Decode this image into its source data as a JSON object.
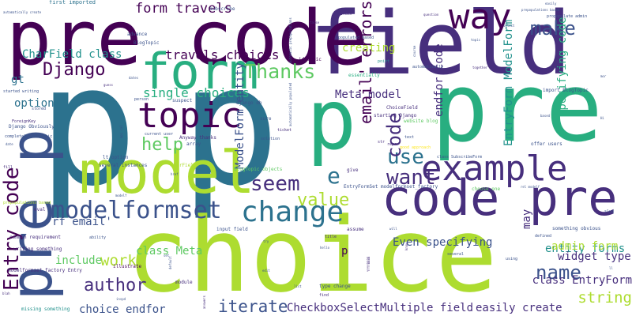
{
  "palette": {
    "background": "#ffffff",
    "colors": [
      "#440154",
      "#472f7d",
      "#3b528b",
      "#2c728e",
      "#21918c",
      "#28ae80",
      "#5ec962",
      "#addc30",
      "#fde725"
    ]
  },
  "words": [
    {
      "text": "p",
      "color": "#2c728e"
    },
    {
      "text": "p",
      "color": "#2c728e"
    },
    {
      "text": "choice",
      "color": "#addc30"
    },
    {
      "text": "field",
      "color": "#472f7d"
    },
    {
      "text": "pre code",
      "color": "#440154"
    },
    {
      "text": "pre",
      "color": "#28ae80"
    },
    {
      "text": "p",
      "color": "#28ae80"
    },
    {
      "text": "model",
      "color": "#addc30"
    },
    {
      "text": "code pre",
      "color": "#472f7d"
    },
    {
      "text": "form",
      "color": "#28ae80"
    },
    {
      "text": "pre p",
      "color": "#3b528b"
    },
    {
      "text": "example",
      "color": "#472f7d"
    },
    {
      "text": "topic",
      "color": "#440154"
    },
    {
      "text": "change",
      "color": "#2c728e"
    },
    {
      "text": "Entry code",
      "color": "#440154"
    },
    {
      "text": "modelformset",
      "color": "#3b528b"
    },
    {
      "text": "way",
      "color": "#440154"
    },
    {
      "text": "make",
      "color": "#3b528b"
    },
    {
      "text": "email' errors",
      "color": "#440154"
    },
    {
      "text": "form travels",
      "color": "#440154"
    },
    {
      "text": "Thanks",
      "color": "#5ec962"
    },
    {
      "text": "Django",
      "color": "#440154"
    },
    {
      "text": "seem",
      "color": "#472f7d"
    },
    {
      "text": "value",
      "color": "#addc30"
    },
    {
      "text": "want",
      "color": "#472f7d"
    },
    {
      "text": "use",
      "color": "#2c728e"
    },
    {
      "text": "code",
      "color": "#472f7d"
    },
    {
      "text": "e",
      "color": "#2c728e"
    },
    {
      "text": "name",
      "color": "#3b528b"
    },
    {
      "text": "author",
      "color": "#472f7d"
    },
    {
      "text": "help",
      "color": "#5ec962"
    },
    {
      "text": "iterate",
      "color": "#3b528b"
    },
    {
      "text": "string",
      "color": "#addc30"
    },
    {
      "text": "work",
      "color": "#addc30"
    },
    {
      "text": "single choices",
      "color": "#28ae80"
    },
    {
      "text": "travels choices",
      "color": "#440154"
    },
    {
      "text": "CharField class",
      "color": "#21918c"
    },
    {
      "text": "Meta model",
      "color": "#472f7d"
    },
    {
      "text": "creating",
      "color": "#addc30"
    },
    {
      "text": "endfor code",
      "color": "#472f7d"
    },
    {
      "text": "specifying code",
      "color": "#28ae80"
    },
    {
      "text": "EntryForm ModelForm",
      "color": "#21918c"
    },
    {
      "text": "ModelForm entity",
      "color": "#3b528b"
    },
    {
      "text": "Even specifying",
      "color": "#3b528b"
    },
    {
      "text": "entity forms",
      "color": "#21918c"
    },
    {
      "text": "admin form",
      "color": "#addc30"
    },
    {
      "text": "widget type",
      "color": "#472f7d"
    },
    {
      "text": "class EntryForm",
      "color": "#472f7d"
    },
    {
      "text": "easily create",
      "color": "#472f7d"
    },
    {
      "text": "CheckboxSelectMultiple field",
      "color": "#472f7d"
    },
    {
      "text": "choice endfor",
      "color": "#3b528b"
    },
    {
      "text": "class Meta",
      "color": "#5ec962"
    },
    {
      "text": "rf email'",
      "color": "#3b528b"
    },
    {
      "text": "include",
      "color": "#5ec962"
    },
    {
      "text": "option",
      "color": "#2c728e"
    },
    {
      "text": "gt",
      "color": "#2c728e"
    },
    {
      "text": "may",
      "color": "#472f7d"
    },
    {
      "text": "p",
      "color": "#440154"
    },
    {
      "text": "first imported",
      "color": "#2c728e"
    },
    {
      "text": "subscribe",
      "color": "#3b528b"
    },
    {
      "text": "advance",
      "color": "#3b528b"
    },
    {
      "text": "BlogTopic",
      "color": "#3b528b"
    },
    {
      "text": "id topic",
      "color": "#440154"
    },
    {
      "text": "populated based",
      "color": "#3b528b"
    },
    {
      "text": "essentially",
      "color": "#28ae80"
    },
    {
      "text": "ChoiceField",
      "color": "#472f7d"
    },
    {
      "text": "starting Django",
      "color": "#472f7d"
    },
    {
      "text": "website blog",
      "color": "#5ec962"
    },
    {
      "text": "repr",
      "color": "#472f7d"
    },
    {
      "text": "good approach",
      "color": "#fde725"
    },
    {
      "text": "class SubscribeForm",
      "color": "#3b528b"
    },
    {
      "text": "choose one",
      "color": "#5ec962"
    },
    {
      "text": "offer users",
      "color": "#3b528b"
    },
    {
      "text": "EntryFormSet modelformset_factory",
      "color": "#3b528b"
    },
    {
      "text": "BlogTopic objects",
      "color": "#5ec962"
    },
    {
      "text": "several instances",
      "color": "#3b528b"
    },
    {
      "text": "lt option",
      "color": "#3b528b"
    },
    {
      "text": "CharField",
      "color": "#addc30"
    },
    {
      "text": "django db",
      "color": "#3b528b"
    },
    {
      "text": "current user",
      "color": "#3b528b"
    },
    {
      "text": "Anyway thanks",
      "color": "#472f7d"
    },
    {
      "text": "array",
      "color": "#3b528b"
    },
    {
      "text": "import BlogTopic",
      "color": "#3b528b"
    },
    {
      "text": "modelformset_factory Entry",
      "color": "#472f7d"
    },
    {
      "text": "common requirement",
      "color": "#472f7d"
    },
    {
      "text": "writing something",
      "color": "#472f7d"
    },
    {
      "text": "Django Obviously",
      "color": "#3b528b"
    },
    {
      "text": "completely automatic",
      "color": "#3b528b"
    },
    {
      "text": "input field",
      "color": "#3b528b"
    },
    {
      "text": "missing something",
      "color": "#21918c"
    },
    {
      "text": "type change",
      "color": "#3b528b"
    },
    {
      "text": "assume",
      "color": "#472f7d"
    },
    {
      "text": "something obvious",
      "color": "#3b528b"
    },
    {
      "text": "defined",
      "color": "#3b528b"
    },
    {
      "text": "illustrate",
      "color": "#440154"
    },
    {
      "text": "module",
      "color": "#472f7d"
    },
    {
      "text": "solution",
      "color": "#3b528b"
    },
    {
      "text": "ticket",
      "color": "#472f7d"
    },
    {
      "text": "sure",
      "color": "#3b528b"
    },
    {
      "text": "suspect",
      "color": "#3b528b"
    },
    {
      "text": "person",
      "color": "#3b528b"
    },
    {
      "text": "eval",
      "color": "#472f7d"
    },
    {
      "text": "ability",
      "color": "#3b528b"
    },
    {
      "text": "slug",
      "color": "#3b528b"
    },
    {
      "text": "give",
      "color": "#472f7d"
    },
    {
      "text": "str",
      "color": "#472f7d"
    },
    {
      "text": "text",
      "color": "#3b528b"
    },
    {
      "text": "automatically",
      "color": "#3b528b"
    },
    {
      "text": "prepopulations based",
      "color": "#addc30"
    },
    {
      "text": "propopulate admin",
      "color": "#3b528b"
    },
    {
      "text": "started writing",
      "color": "#3b528b"
    },
    {
      "text": "ForeignKey",
      "color": "#472f7d"
    },
    {
      "text": "stored",
      "color": "#3b528b"
    },
    {
      "text": "fill",
      "color": "#472f7d"
    },
    {
      "text": "point",
      "color": "#21918c"
    },
    {
      "text": "select",
      "color": "#3b528b"
    },
    {
      "text": "create",
      "color": "#472f7d"
    },
    {
      "text": "question",
      "color": "#472f7d"
    },
    {
      "text": "easily",
      "color": "#3b528b"
    },
    {
      "text": "title",
      "color": "#472f7d"
    },
    {
      "text": "using",
      "color": "#3b528b"
    },
    {
      "text": "several",
      "color": "#3b528b"
    },
    {
      "text": "find",
      "color": "#472f7d"
    },
    {
      "text": "answers",
      "color": "#472f7d"
    },
    {
      "text": "hello",
      "color": "#3b528b"
    },
    {
      "text": "date",
      "color": "#3b528b"
    },
    {
      "text": "blah",
      "color": "#472f7d"
    },
    {
      "text": "together",
      "color": "#472f7d"
    },
    {
      "text": "false",
      "color": "#472f7d"
    },
    {
      "text": "know",
      "color": "#472f7d"
    },
    {
      "text": "ll",
      "color": "#3b528b"
    },
    {
      "text": "automatic prepopulations",
      "color": "#3b528b"
    },
    {
      "text": "YYYYBBBB",
      "color": "#472f7d"
    },
    {
      "text": "default",
      "color": "#3b528b"
    },
    {
      "text": "based",
      "color": "#3b528b"
    },
    {
      "text": "dates",
      "color": "#3b528b"
    },
    {
      "text": "api ral",
      "color": "#3b528b"
    },
    {
      "text": "modelf",
      "color": "#3b528b"
    },
    {
      "text": "guess",
      "color": "#472f7d"
    },
    {
      "text": "course",
      "color": "#3b528b"
    },
    {
      "text": "mor",
      "color": "#3b528b"
    },
    {
      "text": "href",
      "color": "#3b528b"
    },
    {
      "text": "set",
      "color": "#3b528b"
    },
    {
      "text": "will",
      "color": "#3b528b"
    },
    {
      "text": "edit",
      "color": "#3b528b"
    },
    {
      "text": "try",
      "color": "#3b528b"
    },
    {
      "text": "list",
      "color": "#3b528b"
    },
    {
      "text": "Hi",
      "color": "#3b528b"
    },
    {
      "text": "rel modelf",
      "color": "#3b528b"
    },
    {
      "text": "automatically populated",
      "color": "#3b528b"
    },
    {
      "text": "inspd",
      "color": "#3b528b"
    },
    {
      "text": "topic",
      "color": "#3b528b"
    },
    {
      "text": "automatically create",
      "color": "#3b528b"
    },
    {
      "text": "prepopulations based",
      "color": "#3b528b"
    }
  ]
}
